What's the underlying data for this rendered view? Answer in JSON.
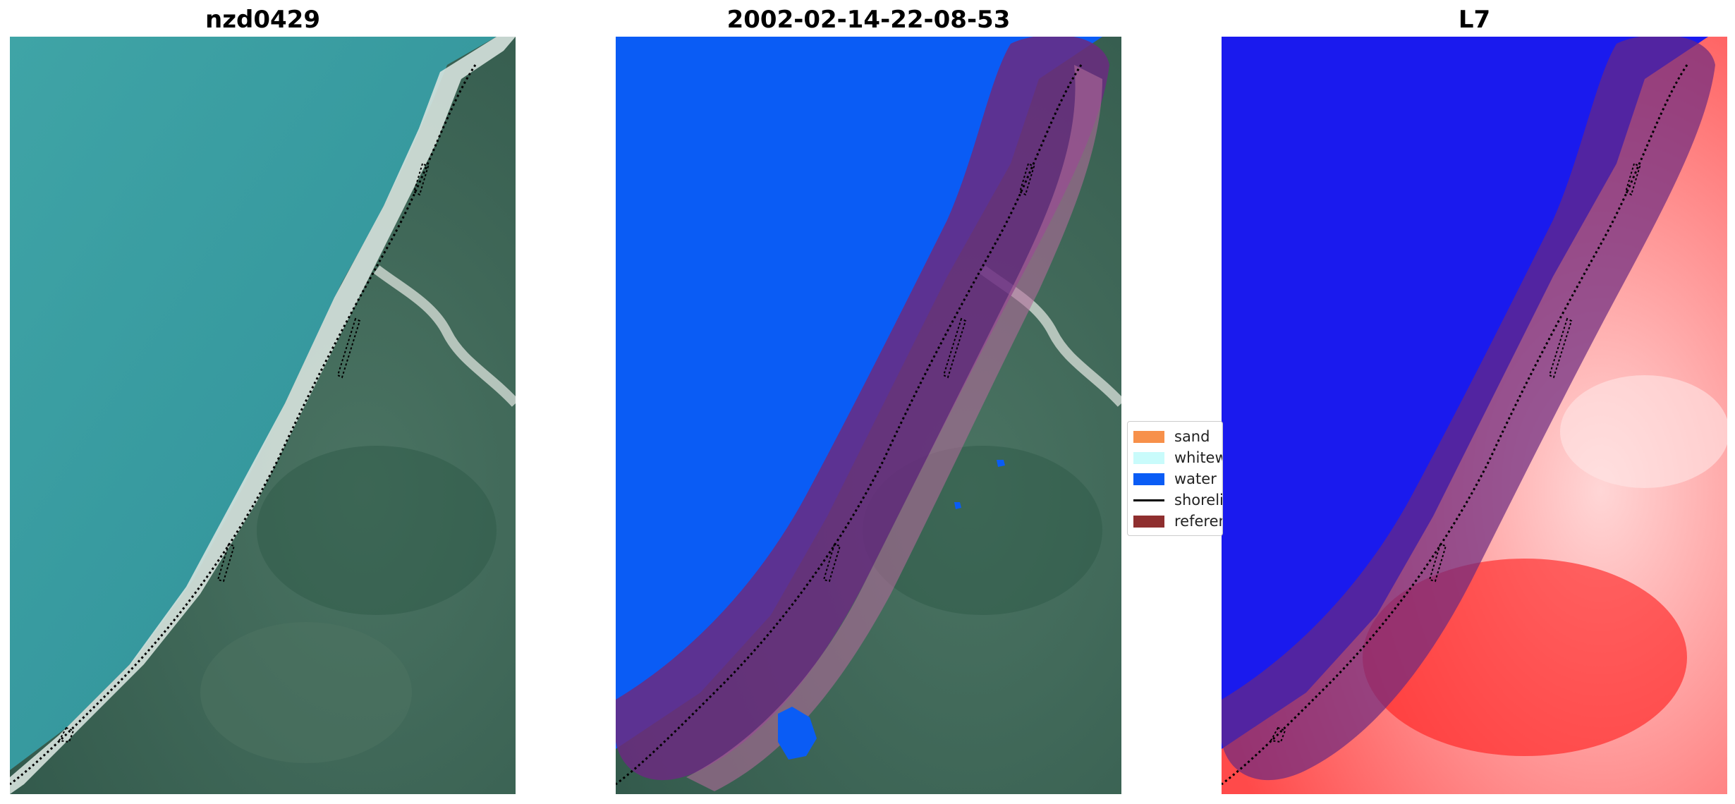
{
  "panels": [
    {
      "title": "nzd0429"
    },
    {
      "title": "2002-02-14-22-08-53"
    },
    {
      "title": "L7"
    }
  ],
  "legend": {
    "items": [
      {
        "label": "sand",
        "kind": "patch",
        "color": "#f7904a"
      },
      {
        "label": "whitewater",
        "kind": "patch",
        "color": "#c9fbfb"
      },
      {
        "label": "water",
        "kind": "patch",
        "color": "#0a5cf5"
      },
      {
        "label": "shoreline",
        "kind": "line",
        "color": "#000000"
      },
      {
        "label": "reference shoreline buffer",
        "kind": "patch",
        "color": "#8f2f2f"
      }
    ]
  },
  "colors": {
    "ocean_rgb": "#3a9a9e",
    "land_rgb": "#3f6a5a",
    "beach": "#d9e3de",
    "water_class": "#0a5cf5",
    "buffer": "#6b2a80",
    "ndwi_water": "#1a1aee",
    "ndwi_land": "#ff2a2a"
  }
}
